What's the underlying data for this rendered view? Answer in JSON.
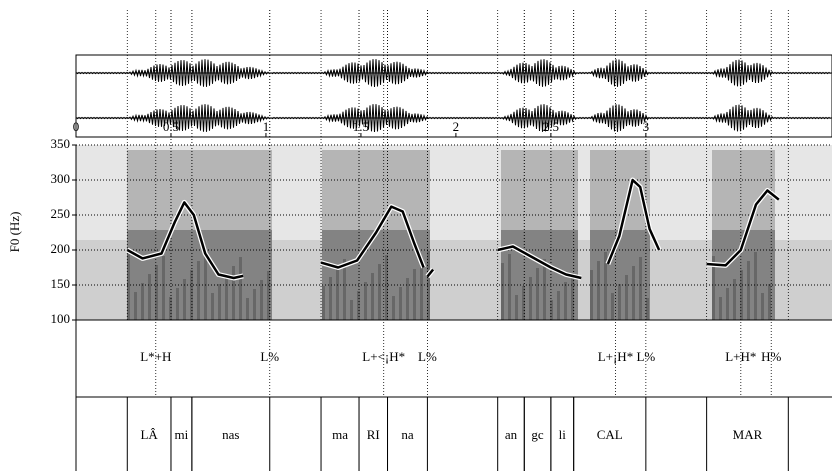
{
  "chart_data": {
    "type": "line",
    "ylabel": "F0 (Hz)",
    "xlim": [
      0,
      3.98
    ],
    "xticks": [
      0,
      0.5,
      1,
      1.5,
      2,
      2.5,
      3
    ],
    "ylim": [
      100,
      350
    ],
    "yticks": [
      100,
      150,
      200,
      250,
      300,
      350
    ],
    "grid": true,
    "series": [
      {
        "color": "#000000",
        "x": [
          0.27,
          0.35,
          0.45,
          0.52,
          0.57,
          0.62,
          0.68,
          0.75,
          0.83,
          0.88,
          null,
          1.29,
          1.38,
          1.48,
          1.58,
          1.66,
          1.72,
          1.78,
          1.83,
          null,
          1.85,
          1.88,
          null,
          2.22,
          2.3,
          2.4,
          2.5,
          2.58,
          2.66,
          null,
          2.8,
          2.86,
          2.93,
          2.97,
          3.02,
          3.07,
          null,
          3.32,
          3.42,
          3.5,
          3.58,
          3.64,
          3.7
        ],
        "values": [
          200,
          188,
          195,
          240,
          268,
          250,
          195,
          165,
          160,
          163,
          null,
          182,
          175,
          185,
          225,
          262,
          255,
          210,
          175,
          null,
          162,
          172,
          null,
          200,
          205,
          190,
          175,
          165,
          160,
          null,
          180,
          220,
          300,
          290,
          230,
          200,
          null,
          180,
          178,
          200,
          265,
          285,
          272
        ]
      }
    ],
    "tones": [
      {
        "label": "L*+H",
        "time": 0.42
      },
      {
        "label": "L%",
        "time": 1.02
      },
      {
        "label": "L+<¡H*",
        "time": 1.62
      },
      {
        "label": "L%",
        "time": 1.85
      },
      {
        "label": "L+¡H*",
        "time": 2.84
      },
      {
        "label": "L%",
        "time": 3.0
      },
      {
        "label": "L+H*",
        "time": 3.5
      },
      {
        "label": "H%",
        "time": 3.66
      }
    ],
    "words": [
      {
        "label": "LÂ",
        "start": 0.27,
        "end": 0.5
      },
      {
        "label": "mi",
        "start": 0.5,
        "end": 0.61
      },
      {
        "label": "nas",
        "start": 0.61,
        "end": 1.02
      },
      {
        "label": "ma",
        "start": 1.29,
        "end": 1.49
      },
      {
        "label": "RI",
        "start": 1.49,
        "end": 1.64
      },
      {
        "label": "na",
        "start": 1.64,
        "end": 1.85
      },
      {
        "label": "an",
        "start": 2.22,
        "end": 2.36
      },
      {
        "label": "gc",
        "start": 2.36,
        "end": 2.5
      },
      {
        "label": "li",
        "start": 2.5,
        "end": 2.62
      },
      {
        "label": "CAL",
        "start": 2.62,
        "end": 3.0
      },
      {
        "label": "MAR",
        "start": 3.32,
        "end": 3.75
      }
    ]
  }
}
